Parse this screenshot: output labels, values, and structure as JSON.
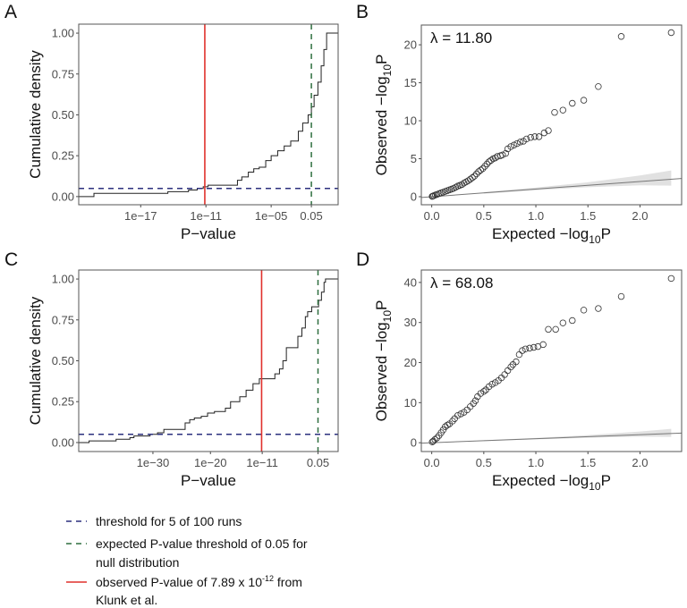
{
  "colors": {
    "observed_red": "#e0302c",
    "threshold_navy": "#2b2f7d",
    "expected_green": "#2f6f3f",
    "curve": "#222222",
    "band": "#d9d9d9"
  },
  "legend": {
    "items": [
      {
        "line": "dashed",
        "color": "#2b2f7d",
        "text": "threshold for 5 of 100 runs"
      },
      {
        "line": "dashed",
        "color": "#2f6f3f",
        "text": "expected P-value threshold of 0.05 for",
        "text2": "null distribution"
      },
      {
        "line": "solid",
        "color": "#e0302c",
        "text": "observed P-value of 7.89 x 10",
        "sup": "-12",
        "text_after": " from",
        "text2": "Klunk et al."
      }
    ]
  },
  "chart_data": [
    {
      "panel": "A",
      "type": "line",
      "subtype": "ecdf-step",
      "xlabel": "P−value",
      "ylabel": "Cumulative density",
      "x_scale": "log10",
      "xlim_log10": [
        -22.7,
        1.16
      ],
      "ylim": [
        -0.05,
        1.055
      ],
      "xticks": [
        {
          "log10": -17,
          "label": "1e−17"
        },
        {
          "log10": -11,
          "label": "1e−11"
        },
        {
          "log10": -5,
          "label": "1e−05"
        },
        {
          "log10": -1.301,
          "label": "0.05"
        }
      ],
      "yticks": [
        {
          "v": 0,
          "label": "0.00"
        },
        {
          "v": 0.25,
          "label": "0.25"
        },
        {
          "v": 0.5,
          "label": "0.50"
        },
        {
          "v": 0.75,
          "label": "0.75"
        },
        {
          "v": 1,
          "label": "1.00"
        }
      ],
      "hline_threshold": 0.05,
      "vline_expected_log10": -1.301,
      "vline_observed_log10": -11.103,
      "steps_log10p_cdf": [
        [
          -21.3,
          0.02
        ],
        [
          -14.5,
          0.03
        ],
        [
          -12.6,
          0.04
        ],
        [
          -11.8,
          0.05
        ],
        [
          -11.25,
          0.06
        ],
        [
          -10.8,
          0.07
        ],
        [
          -8.1,
          0.1
        ],
        [
          -7.7,
          0.12
        ],
        [
          -7.1,
          0.15
        ],
        [
          -6.6,
          0.17
        ],
        [
          -6.1,
          0.18
        ],
        [
          -5.5,
          0.22
        ],
        [
          -5.0,
          0.25
        ],
        [
          -4.4,
          0.28
        ],
        [
          -3.8,
          0.31
        ],
        [
          -3.2,
          0.34
        ],
        [
          -2.5,
          0.4
        ],
        [
          -2.1,
          0.45
        ],
        [
          -1.6,
          0.5
        ],
        [
          -1.3,
          0.55
        ],
        [
          -1.05,
          0.62
        ],
        [
          -0.7,
          0.7
        ],
        [
          -0.4,
          0.8
        ],
        [
          -0.15,
          0.9
        ],
        [
          0.1,
          1.0
        ]
      ]
    },
    {
      "panel": "B",
      "type": "scatter",
      "subtype": "qq",
      "annotation": "λ = 11.80",
      "xlabel_prefix": "Expected −log",
      "xlabel_sub": "10",
      "xlabel_suffix": "P",
      "ylabel_prefix": "Observed −log",
      "ylabel_sub": "10",
      "ylabel_suffix": "P",
      "xlim": [
        -0.1,
        2.4
      ],
      "ylim": [
        -1.06,
        22.6
      ],
      "xticks": [
        {
          "v": 0,
          "label": "0.0"
        },
        {
          "v": 0.5,
          "label": "0.5"
        },
        {
          "v": 1,
          "label": "1.0"
        },
        {
          "v": 1.5,
          "label": "1.5"
        },
        {
          "v": 2,
          "label": "2.0"
        }
      ],
      "yticks": [
        {
          "v": 0,
          "label": "0"
        },
        {
          "v": 5,
          "label": "5"
        },
        {
          "v": 10,
          "label": "10"
        },
        {
          "v": 15,
          "label": "15"
        },
        {
          "v": 20,
          "label": "20"
        }
      ],
      "reference_line": {
        "slope": 1,
        "intercept": 0
      },
      "ci_band": {
        "x": [
          0.5,
          1.0,
          1.5,
          2.0,
          2.3
        ],
        "lower": [
          0.4,
          0.85,
          1.25,
          1.5,
          1.45
        ],
        "upper": [
          0.62,
          1.2,
          1.9,
          2.8,
          3.45
        ]
      },
      "points": [
        [
          2.3,
          21.6
        ],
        [
          1.82,
          21.1
        ],
        [
          1.6,
          14.5
        ],
        [
          1.46,
          12.7
        ],
        [
          1.35,
          12.3
        ],
        [
          1.26,
          11.4
        ],
        [
          1.18,
          11.1
        ],
        [
          1.12,
          8.7
        ],
        [
          1.08,
          8.4
        ],
        [
          1.03,
          7.9
        ],
        [
          0.99,
          7.9
        ],
        [
          0.95,
          7.8
        ],
        [
          0.91,
          7.6
        ],
        [
          0.88,
          7.3
        ],
        [
          0.85,
          7.2
        ],
        [
          0.82,
          7.0
        ],
        [
          0.79,
          6.8
        ],
        [
          0.76,
          6.6
        ],
        [
          0.73,
          6.3
        ],
        [
          0.71,
          5.7
        ],
        [
          0.68,
          5.5
        ],
        [
          0.66,
          5.4
        ],
        [
          0.63,
          5.3
        ],
        [
          0.61,
          5.1
        ],
        [
          0.59,
          5.0
        ],
        [
          0.57,
          4.8
        ],
        [
          0.55,
          4.6
        ],
        [
          0.53,
          4.3
        ],
        [
          0.51,
          4.0
        ],
        [
          0.49,
          3.7
        ],
        [
          0.47,
          3.5
        ],
        [
          0.45,
          3.3
        ],
        [
          0.43,
          3.0
        ],
        [
          0.41,
          2.7
        ],
        [
          0.39,
          2.5
        ],
        [
          0.37,
          2.3
        ],
        [
          0.35,
          2.1
        ],
        [
          0.33,
          1.95
        ],
        [
          0.31,
          1.8
        ],
        [
          0.29,
          1.6
        ],
        [
          0.27,
          1.5
        ],
        [
          0.25,
          1.4
        ],
        [
          0.23,
          1.25
        ],
        [
          0.21,
          1.1
        ],
        [
          0.19,
          1.0
        ],
        [
          0.17,
          0.9
        ],
        [
          0.15,
          0.8
        ],
        [
          0.13,
          0.7
        ],
        [
          0.11,
          0.6
        ],
        [
          0.09,
          0.5
        ],
        [
          0.07,
          0.4
        ],
        [
          0.05,
          0.3
        ],
        [
          0.035,
          0.22
        ],
        [
          0.02,
          0.14
        ],
        [
          0.01,
          0.08
        ],
        [
          0.004,
          0.04
        ]
      ]
    },
    {
      "panel": "C",
      "type": "line",
      "subtype": "ecdf-step",
      "xlabel": "P−value",
      "ylabel": "Cumulative density",
      "x_scale": "log10",
      "xlim_log10": [
        -42.9,
        2.2
      ],
      "ylim": [
        -0.055,
        1.055
      ],
      "xticks": [
        {
          "log10": -30,
          "label": "1e−30"
        },
        {
          "log10": -20,
          "label": "1e−20"
        },
        {
          "log10": -11,
          "label": "1e−11"
        },
        {
          "log10": -1.301,
          "label": "0.05"
        }
      ],
      "yticks": [
        {
          "v": 0,
          "label": "0.00"
        },
        {
          "v": 0.25,
          "label": "0.25"
        },
        {
          "v": 0.5,
          "label": "0.50"
        },
        {
          "v": 0.75,
          "label": "0.75"
        },
        {
          "v": 1,
          "label": "1.00"
        }
      ],
      "hline_threshold": 0.05,
      "vline_expected_log10": -1.301,
      "vline_observed_log10": -11.103,
      "steps_log10p_cdf": [
        [
          -41.1,
          0.01
        ],
        [
          -36.4,
          0.02
        ],
        [
          -34,
          0.03
        ],
        [
          -33.3,
          0.04
        ],
        [
          -30.5,
          0.05
        ],
        [
          -29.2,
          0.06
        ],
        [
          -28.1,
          0.08
        ],
        [
          -24.4,
          0.12
        ],
        [
          -23.6,
          0.14
        ],
        [
          -22.8,
          0.15
        ],
        [
          -21.6,
          0.16
        ],
        [
          -20.5,
          0.18
        ],
        [
          -19.3,
          0.19
        ],
        [
          -17.4,
          0.21
        ],
        [
          -16.5,
          0.25
        ],
        [
          -14.9,
          0.28
        ],
        [
          -13.8,
          0.32
        ],
        [
          -12.6,
          0.36
        ],
        [
          -11.5,
          0.39
        ],
        [
          -10.7,
          0.39
        ],
        [
          -8.8,
          0.42
        ],
        [
          -8.0,
          0.45
        ],
        [
          -7.4,
          0.5
        ],
        [
          -6.8,
          0.58
        ],
        [
          -4.8,
          0.65
        ],
        [
          -4.1,
          0.7
        ],
        [
          -3.5,
          0.77
        ],
        [
          -3.1,
          0.8
        ],
        [
          -2.4,
          0.83
        ],
        [
          -1.2,
          0.87
        ],
        [
          -0.7,
          0.92
        ],
        [
          -0.25,
          0.98
        ],
        [
          0.0,
          1.0
        ]
      ]
    },
    {
      "panel": "D",
      "type": "scatter",
      "subtype": "qq",
      "annotation": "λ = 68.08",
      "xlabel_prefix": "Expected −log",
      "xlabel_sub": "10",
      "xlabel_suffix": "P",
      "ylabel_prefix": "Observed −log",
      "ylabel_sub": "10",
      "ylabel_suffix": "P",
      "xlim": [
        -0.1,
        2.4
      ],
      "ylim": [
        -2.2,
        43.1
      ],
      "xticks": [
        {
          "v": 0,
          "label": "0.0"
        },
        {
          "v": 0.5,
          "label": "0.5"
        },
        {
          "v": 1,
          "label": "1.0"
        },
        {
          "v": 1.5,
          "label": "1.5"
        },
        {
          "v": 2,
          "label": "2.0"
        }
      ],
      "yticks": [
        {
          "v": 0,
          "label": "0"
        },
        {
          "v": 10,
          "label": "10"
        },
        {
          "v": 20,
          "label": "20"
        },
        {
          "v": 30,
          "label": "30"
        },
        {
          "v": 40,
          "label": "40"
        }
      ],
      "reference_line": {
        "slope": 1,
        "intercept": 0
      },
      "ci_band": {
        "x": [
          0.5,
          1.0,
          1.5,
          2.0,
          2.3
        ],
        "lower": [
          0.4,
          0.85,
          1.25,
          1.5,
          1.45
        ],
        "upper": [
          0.62,
          1.2,
          1.9,
          2.8,
          3.45
        ]
      },
      "points": [
        [
          2.3,
          41.0
        ],
        [
          1.82,
          36.5
        ],
        [
          1.6,
          33.5
        ],
        [
          1.46,
          33.1
        ],
        [
          1.35,
          30.5
        ],
        [
          1.26,
          29.9
        ],
        [
          1.19,
          28.3
        ],
        [
          1.12,
          28.3
        ],
        [
          1.07,
          24.5
        ],
        [
          1.02,
          24.0
        ],
        [
          0.98,
          23.8
        ],
        [
          0.94,
          23.6
        ],
        [
          0.9,
          23.4
        ],
        [
          0.87,
          23.0
        ],
        [
          0.84,
          22.0
        ],
        [
          0.81,
          20.2
        ],
        [
          0.78,
          19.5
        ],
        [
          0.76,
          18.9
        ],
        [
          0.73,
          18.0
        ],
        [
          0.7,
          17.0
        ],
        [
          0.67,
          16.2
        ],
        [
          0.64,
          15.5
        ],
        [
          0.61,
          15.0
        ],
        [
          0.58,
          14.6
        ],
        [
          0.55,
          14.0
        ],
        [
          0.52,
          13.2
        ],
        [
          0.5,
          12.8
        ],
        [
          0.47,
          12.3
        ],
        [
          0.44,
          11.5
        ],
        [
          0.42,
          10.5
        ],
        [
          0.4,
          9.8
        ],
        [
          0.37,
          9.0
        ],
        [
          0.34,
          8.2
        ],
        [
          0.31,
          7.6
        ],
        [
          0.28,
          7.2
        ],
        [
          0.25,
          6.8
        ],
        [
          0.22,
          6.0
        ],
        [
          0.2,
          5.4
        ],
        [
          0.17,
          4.7
        ],
        [
          0.15,
          4.4
        ],
        [
          0.13,
          4.0
        ],
        [
          0.11,
          3.2
        ],
        [
          0.09,
          2.5
        ],
        [
          0.07,
          1.8
        ],
        [
          0.05,
          1.2
        ],
        [
          0.03,
          0.8
        ],
        [
          0.015,
          0.4
        ],
        [
          0.005,
          0.2
        ]
      ]
    }
  ]
}
